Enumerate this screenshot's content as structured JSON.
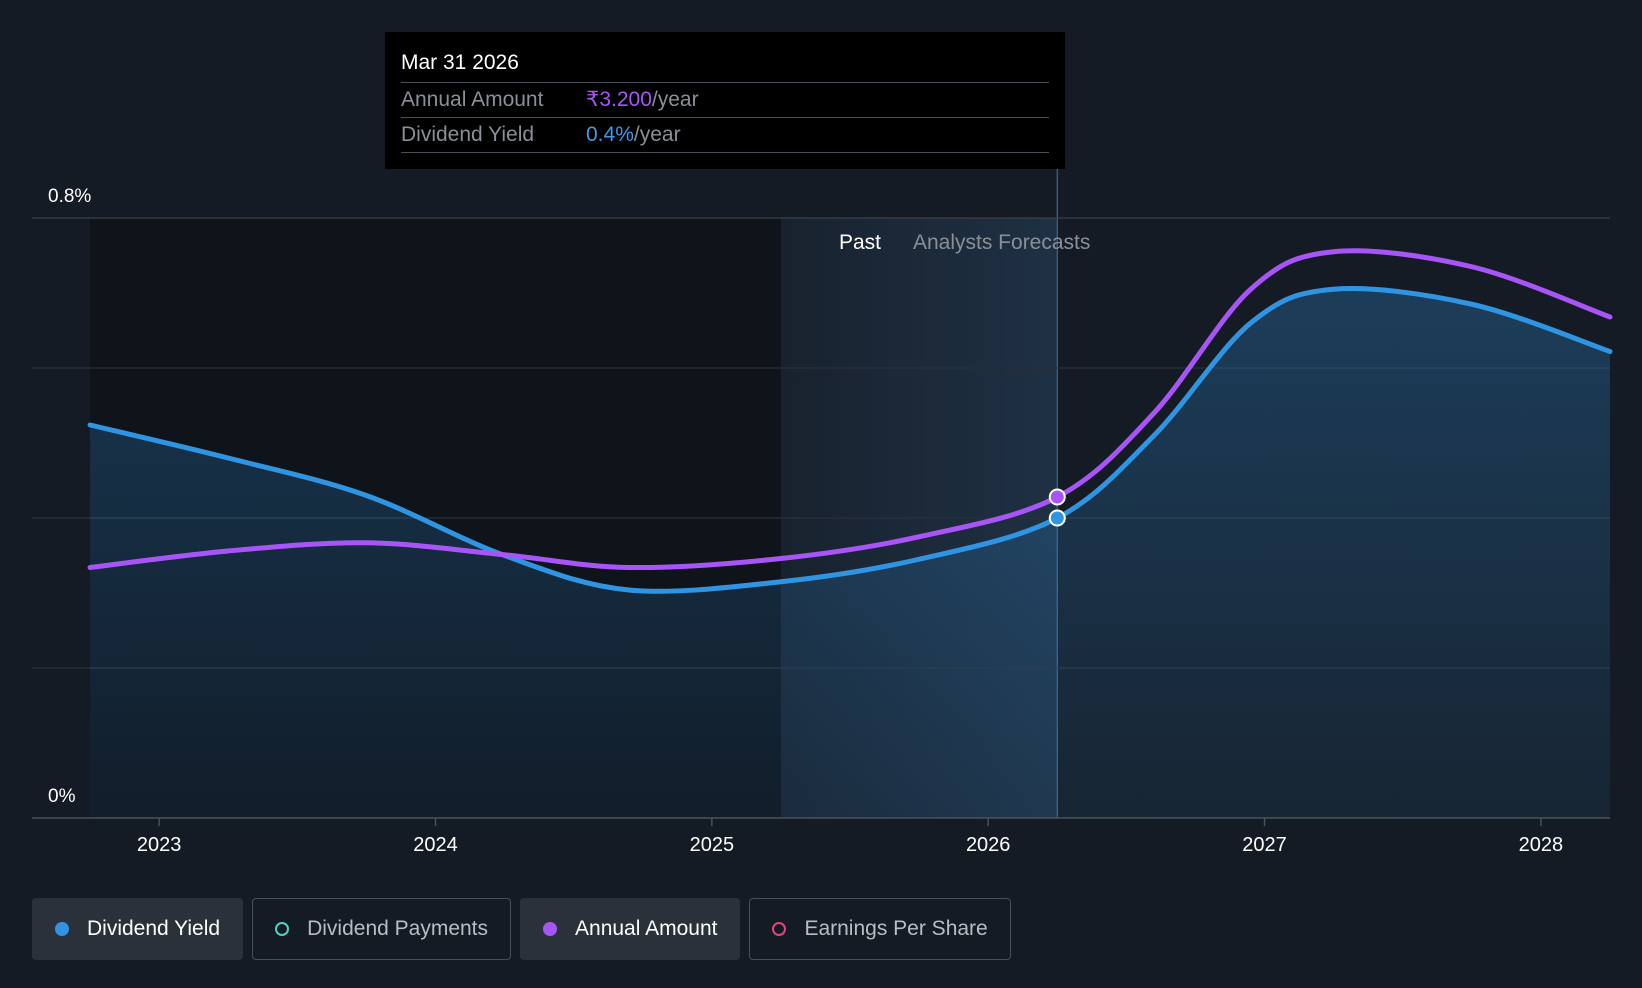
{
  "tooltip": {
    "date": "Mar 31 2026",
    "rows": [
      {
        "label": "Annual Amount",
        "value": "₹3.200",
        "unit": "/year"
      },
      {
        "label": "Dividend Yield",
        "value": "0.4%",
        "unit": "/year"
      }
    ]
  },
  "legend": [
    {
      "label": "Dividend Yield",
      "color": "#2f95e3",
      "active": true,
      "filled": true
    },
    {
      "label": "Dividend Payments",
      "color": "#4fd1c5",
      "active": false,
      "filled": false
    },
    {
      "label": "Annual Amount",
      "color": "#a855f7",
      "active": true,
      "filled": true
    },
    {
      "label": "Earnings Per Share",
      "color": "#e0457b",
      "active": false,
      "filled": false
    }
  ],
  "chart_data": {
    "type": "line",
    "y_tick_labels": [
      "0.8%",
      "0%"
    ],
    "ylim": [
      0,
      0.8
    ],
    "xlim": [
      2022.54,
      2028.25
    ],
    "x_tick_labels": [
      "2023",
      "2024",
      "2025",
      "2026",
      "2027",
      "2028"
    ],
    "x_ticks": [
      2023,
      2024,
      2025,
      2026,
      2027,
      2028
    ],
    "grid": true,
    "regions": {
      "past_label": "Past",
      "forecast_label": "Analysts Forecasts",
      "past_start": 2025.25,
      "forecast_start": 2025.67,
      "current": 2026.25
    },
    "series": [
      {
        "name": "Dividend Yield",
        "color": "#2f95e3",
        "area": true,
        "x": [
          2022.75,
          2023.25,
          2023.75,
          2024.25,
          2024.7,
          2025.25,
          2025.75,
          2026.25,
          2026.6,
          2026.95,
          2027.25,
          2027.75,
          2028.25
        ],
        "y": [
          0.524,
          0.48,
          0.43,
          0.35,
          0.304,
          0.315,
          0.345,
          0.4,
          0.51,
          0.66,
          0.705,
          0.685,
          0.622
        ]
      },
      {
        "name": "Annual Amount",
        "color": "#a855f7",
        "area": false,
        "x": [
          2022.75,
          2023.25,
          2023.75,
          2024.25,
          2024.7,
          2025.25,
          2025.75,
          2026.25,
          2026.6,
          2026.95,
          2027.25,
          2027.75,
          2028.25
        ],
        "y": [
          0.334,
          0.356,
          0.367,
          0.351,
          0.334,
          0.346,
          0.375,
          0.428,
          0.54,
          0.705,
          0.755,
          0.735,
          0.668
        ]
      }
    ],
    "markers": [
      {
        "series": "Annual Amount",
        "x": 2026.25,
        "y": 0.428
      },
      {
        "series": "Dividend Yield",
        "x": 2026.25,
        "y": 0.4
      }
    ]
  }
}
